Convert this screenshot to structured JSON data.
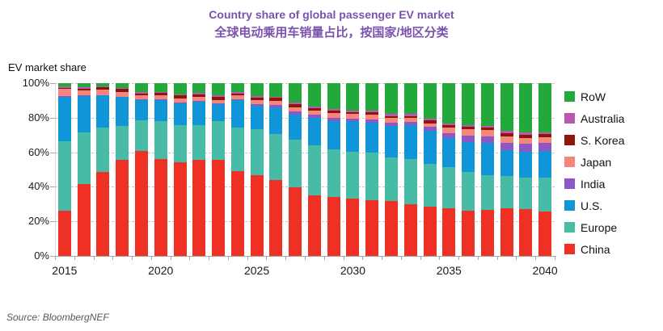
{
  "title": {
    "en": "Country share of global passenger EV market",
    "zh": "全球电动乘用车销量占比，按国家/地区分类",
    "color": "#7b52ae"
  },
  "y_axis_title": "EV market share",
  "source": "Source: BloombergNEF",
  "chart_data": {
    "type": "bar",
    "stacked": true,
    "unit": "%",
    "title": "Country share of global passenger EV market",
    "subtitle": "全球电动乘用车销量占比，按国家/地区分类",
    "ylabel": "EV market share",
    "ylim": [
      0,
      100
    ],
    "grid": "horizontal dashed lines every 20%",
    "legend_position": "right",
    "legend_order_top_to_bottom": [
      "RoW",
      "Australia",
      "S. Korea",
      "Japan",
      "India",
      "U.S.",
      "Europe",
      "China"
    ],
    "categories": [
      2015,
      2016,
      2017,
      2018,
      2019,
      2020,
      2021,
      2022,
      2023,
      2024,
      2025,
      2026,
      2027,
      2028,
      2029,
      2030,
      2031,
      2032,
      2033,
      2034,
      2035,
      2036,
      2037,
      2038,
      2039,
      2040
    ],
    "x_tick_labels": [
      "2015",
      "2020",
      "2025",
      "2030",
      "2035",
      "2040"
    ],
    "x_tick_indices": [
      0,
      5,
      10,
      15,
      20,
      25
    ],
    "y_tick_labels": [
      "100%",
      "80%",
      "60%",
      "40%",
      "20%",
      "0%"
    ],
    "y_tick_values": [
      100,
      80,
      60,
      40,
      20,
      0
    ],
    "series": [
      {
        "key": "china",
        "name": "China",
        "color": "#ee3124",
        "values": [
          26.0,
          41.8,
          48.5,
          55.6,
          60.7,
          56.3,
          54.0,
          55.6,
          55.8,
          49.3,
          46.9,
          44.1,
          39.8,
          35.2,
          34.1,
          33.3,
          32.3,
          31.6,
          29.7,
          28.4,
          27.8,
          26.1,
          26.6,
          27.7,
          27.3,
          25.8
        ]
      },
      {
        "key": "europe",
        "name": "Europe",
        "color": "#47bba6",
        "values": [
          40.2,
          29.8,
          25.8,
          19.5,
          17.8,
          21.6,
          21.5,
          20.3,
          22.1,
          25.1,
          26.3,
          26.3,
          27.7,
          28.9,
          27.7,
          26.9,
          27.3,
          25.5,
          26.6,
          24.7,
          23.4,
          22.3,
          20.3,
          18.5,
          18.0,
          19.5
        ]
      },
      {
        "key": "us",
        "name": "U.S.",
        "color": "#0f95d8",
        "values": [
          26.0,
          21.1,
          18.5,
          16.9,
          11.9,
          12.5,
          13.0,
          13.3,
          10.0,
          15.6,
          13.9,
          15.6,
          14.5,
          15.6,
          16.4,
          17.7,
          17.7,
          18.3,
          19.5,
          19.5,
          17.2,
          17.5,
          18.4,
          15.2,
          15.2,
          15.5
        ]
      },
      {
        "key": "india",
        "name": "India",
        "color": "#8d58c6",
        "values": [
          0.2,
          0.2,
          0.3,
          0.2,
          0.2,
          0.5,
          0.5,
          0.5,
          0.4,
          0.8,
          0.8,
          1.2,
          1.6,
          1.9,
          1.9,
          1.4,
          1.6,
          1.7,
          1.6,
          2.0,
          2.7,
          3.6,
          3.8,
          4.2,
          4.4,
          4.5
        ]
      },
      {
        "key": "japan",
        "name": "Japan",
        "color": "#f5867c",
        "values": [
          4.5,
          2.8,
          3.0,
          2.8,
          2.3,
          2.0,
          2.2,
          2.2,
          2.0,
          2.0,
          2.3,
          2.7,
          2.3,
          2.5,
          2.8,
          2.8,
          2.7,
          2.7,
          2.3,
          2.2,
          3.2,
          3.9,
          3.6,
          3.6,
          3.4,
          3.6
        ]
      },
      {
        "key": "skorea",
        "name": "S. Korea",
        "color": "#8e150a",
        "values": [
          0.4,
          1.2,
          1.6,
          1.6,
          1.1,
          1.4,
          1.6,
          1.4,
          1.6,
          1.1,
          1.4,
          1.5,
          1.9,
          1.6,
          1.3,
          1.1,
          1.6,
          1.3,
          1.3,
          1.6,
          1.2,
          1.3,
          1.4,
          2.0,
          2.0,
          1.6
        ]
      },
      {
        "key": "australia",
        "name": "Australia",
        "color": "#bb56b1",
        "values": [
          1.0,
          0.6,
          0.5,
          0.6,
          0.8,
          0.8,
          0.9,
          0.9,
          0.9,
          0.8,
          0.9,
          0.8,
          0.9,
          0.9,
          1.1,
          0.9,
          0.9,
          1.4,
          1.3,
          1.3,
          1.2,
          1.1,
          1.2,
          1.2,
          1.1,
          1.2
        ]
      },
      {
        "key": "row",
        "name": "RoW",
        "color": "#21a93c",
        "values": [
          1.7,
          2.5,
          1.8,
          2.8,
          5.2,
          4.9,
          6.3,
          5.8,
          7.2,
          5.3,
          7.5,
          7.8,
          11.3,
          13.4,
          14.7,
          15.9,
          15.9,
          17.5,
          17.7,
          20.3,
          23.3,
          24.2,
          24.7,
          27.6,
          28.6,
          28.3
        ]
      }
    ]
  }
}
